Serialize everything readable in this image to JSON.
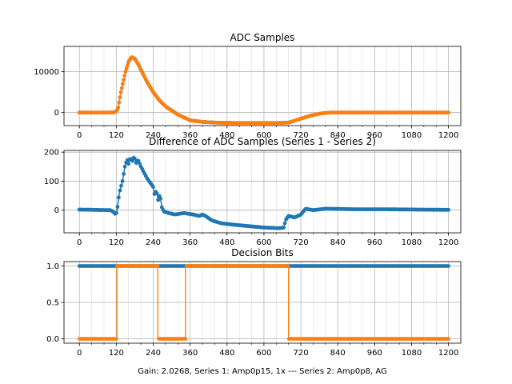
{
  "figure": {
    "xlabel": "Gain: 2.0268, Series 1: Amp0p15, 1x --- Series 2: Amp0p8, AG"
  },
  "colors": {
    "series1": "#1f77b4",
    "series2": "#ff7f0e",
    "grid": "#b0b0b0"
  },
  "chart_data": [
    {
      "type": "scatter",
      "title": "ADC Samples",
      "xlim": [
        -50,
        1240
      ],
      "ylim": [
        -3200,
        16200
      ],
      "xticks": [
        0,
        120,
        240,
        360,
        480,
        600,
        720,
        840,
        960,
        1080,
        1200
      ],
      "xtick_labels": [
        "0",
        "120",
        "240",
        "360",
        "480",
        "600",
        "720",
        "840",
        "960",
        "1080",
        "1200"
      ],
      "yticks": [
        0,
        10000
      ],
      "ytick_labels": [
        "0",
        "10000"
      ],
      "grid": true,
      "series": [
        {
          "name": "Series 1",
          "points": [
            [
              0,
              0
            ],
            [
              100,
              0
            ],
            [
              115,
              50
            ],
            [
              125,
              800
            ],
            [
              135,
              5000
            ],
            [
              150,
              10000
            ],
            [
              160,
              12500
            ],
            [
              170,
              13600
            ],
            [
              180,
              13200
            ],
            [
              190,
              12000
            ],
            [
              200,
              10500
            ],
            [
              220,
              7500
            ],
            [
              240,
              5000
            ],
            [
              260,
              3000
            ],
            [
              280,
              1500
            ],
            [
              300,
              500
            ],
            [
              320,
              -500
            ],
            [
              340,
              -1200
            ],
            [
              360,
              -1900
            ],
            [
              400,
              -2300
            ],
            [
              450,
              -2500
            ],
            [
              500,
              -2550
            ],
            [
              600,
              -2550
            ],
            [
              650,
              -2550
            ],
            [
              680,
              -2450
            ],
            [
              700,
              -2000
            ],
            [
              720,
              -1500
            ],
            [
              750,
              -800
            ],
            [
              780,
              -300
            ],
            [
              800,
              -100
            ],
            [
              820,
              0
            ],
            [
              1200,
              0
            ]
          ]
        },
        {
          "name": "Series 2",
          "points": [
            [
              0,
              0
            ],
            [
              100,
              0
            ],
            [
              115,
              50
            ],
            [
              125,
              800
            ],
            [
              135,
              5000
            ],
            [
              150,
              10000
            ],
            [
              160,
              12500
            ],
            [
              170,
              13600
            ],
            [
              180,
              13200
            ],
            [
              190,
              12000
            ],
            [
              200,
              10500
            ],
            [
              220,
              7500
            ],
            [
              240,
              5000
            ],
            [
              260,
              3000
            ],
            [
              280,
              1500
            ],
            [
              300,
              500
            ],
            [
              320,
              -500
            ],
            [
              340,
              -1200
            ],
            [
              360,
              -1900
            ],
            [
              400,
              -2300
            ],
            [
              450,
              -2500
            ],
            [
              500,
              -2550
            ],
            [
              600,
              -2550
            ],
            [
              650,
              -2550
            ],
            [
              680,
              -2450
            ],
            [
              700,
              -2000
            ],
            [
              720,
              -1500
            ],
            [
              750,
              -800
            ],
            [
              780,
              -300
            ],
            [
              800,
              -100
            ],
            [
              820,
              0
            ],
            [
              1200,
              0
            ]
          ]
        }
      ]
    },
    {
      "type": "line",
      "title": "Difference of ADC Samples (Series 1 - Series 2)",
      "xlim": [
        -50,
        1240
      ],
      "ylim": [
        -78,
        206
      ],
      "xticks": [
        0,
        120,
        240,
        360,
        480,
        600,
        720,
        840,
        960,
        1080,
        1200
      ],
      "xtick_labels": [
        "0",
        "120",
        "240",
        "360",
        "480",
        "600",
        "720",
        "840",
        "960",
        "1080",
        "1200"
      ],
      "yticks": [
        0,
        100,
        200
      ],
      "ytick_labels": [
        "0",
        "100",
        "200"
      ],
      "grid": true,
      "series": [
        {
          "name": "Difference",
          "points": [
            [
              0,
              2
            ],
            [
              100,
              0
            ],
            [
              110,
              -5
            ],
            [
              118,
              -15
            ],
            [
              122,
              -5
            ],
            [
              125,
              20
            ],
            [
              130,
              60
            ],
            [
              140,
              100
            ],
            [
              148,
              150
            ],
            [
              155,
              175
            ],
            [
              160,
              160
            ],
            [
              165,
              180
            ],
            [
              172,
              170
            ],
            [
              178,
              185
            ],
            [
              185,
              160
            ],
            [
              190,
              175
            ],
            [
              200,
              150
            ],
            [
              210,
              130
            ],
            [
              220,
              110
            ],
            [
              230,
              95
            ],
            [
              240,
              80
            ],
            [
              245,
              50
            ],
            [
              250,
              70
            ],
            [
              256,
              35
            ],
            [
              262,
              55
            ],
            [
              268,
              10
            ],
            [
              275,
              -5
            ],
            [
              290,
              -10
            ],
            [
              310,
              -15
            ],
            [
              340,
              -10
            ],
            [
              370,
              -15
            ],
            [
              390,
              -20
            ],
            [
              400,
              -15
            ],
            [
              410,
              -20
            ],
            [
              430,
              -35
            ],
            [
              460,
              -45
            ],
            [
              500,
              -50
            ],
            [
              550,
              -55
            ],
            [
              600,
              -60
            ],
            [
              650,
              -62
            ],
            [
              665,
              -60
            ],
            [
              670,
              -35
            ],
            [
              680,
              -20
            ],
            [
              700,
              -25
            ],
            [
              720,
              -15
            ],
            [
              728,
              -5
            ],
            [
              735,
              5
            ],
            [
              760,
              0
            ],
            [
              800,
              5
            ],
            [
              900,
              3
            ],
            [
              1000,
              3
            ],
            [
              1100,
              2
            ],
            [
              1200,
              1
            ]
          ]
        }
      ]
    },
    {
      "type": "line",
      "title": "Decision Bits",
      "xlim": [
        -50,
        1240
      ],
      "ylim": [
        -0.06,
        1.06
      ],
      "xticks": [
        0,
        120,
        240,
        360,
        480,
        600,
        720,
        840,
        960,
        1080,
        1200
      ],
      "xtick_labels": [
        "0",
        "120",
        "240",
        "360",
        "480",
        "600",
        "720",
        "840",
        "960",
        "1080",
        "1200"
      ],
      "yticks": [
        0,
        0.5,
        1
      ],
      "ytick_labels": [
        "0.0",
        "0.5",
        "1.0"
      ],
      "grid": true,
      "series": [
        {
          "name": "Series 1",
          "points": [
            [
              0,
              1
            ],
            [
              1200,
              1
            ]
          ]
        },
        {
          "name": "Series 2",
          "points": [
            [
              0,
              0
            ],
            [
              122,
              0
            ],
            [
              122,
              1
            ],
            [
              255,
              1
            ],
            [
              255,
              0
            ],
            [
              345,
              0
            ],
            [
              345,
              1
            ],
            [
              680,
              1
            ],
            [
              680,
              0
            ],
            [
              1200,
              0
            ]
          ]
        }
      ]
    }
  ]
}
